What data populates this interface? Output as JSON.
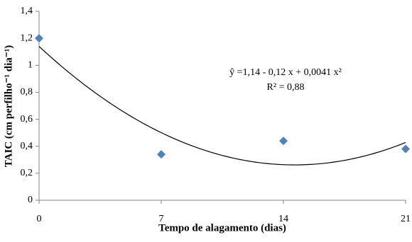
{
  "chart_data": {
    "type": "scatter",
    "x_label": "Tempo de alagamento (dias)",
    "y_label": "TAIC (cm perfilho⁻¹ dia⁻¹)",
    "x": [
      0,
      7,
      14,
      21
    ],
    "values": [
      1.2,
      0.34,
      0.44,
      0.38
    ],
    "color": "#4f81bd",
    "xlim": [
      0,
      21
    ],
    "xticks": [
      0,
      7,
      14,
      21
    ],
    "ylim": [
      0,
      1.4
    ],
    "yticks": [
      0,
      {
        "value": 0.2,
        "label": "0,2"
      },
      {
        "value": 0.4,
        "label": "0,4"
      },
      {
        "value": 0.6,
        "label": "0,6"
      },
      {
        "value": 0.8,
        "label": "0,8"
      },
      1,
      {
        "value": 1.2,
        "label": "1,2"
      },
      {
        "value": 1.4,
        "label": "1,4"
      }
    ],
    "grid": false,
    "fit": {
      "equation": "ŷ =1,14 - 0,12 x + 0,0041 x²",
      "coefficients": [
        1.14,
        -0.12,
        0.0041
      ],
      "r2": "R² = 0,88",
      "color": "#000000"
    }
  }
}
